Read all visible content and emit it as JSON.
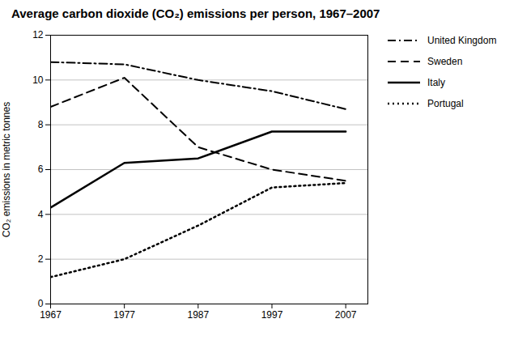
{
  "chart_data": {
    "type": "line",
    "title": "Average carbon dioxide (CO₂) emissions per person, 1967–2007",
    "ylabel": "CO₂ emissions in metric tonnes",
    "x": [
      1967,
      1977,
      1987,
      1997,
      2007
    ],
    "series": [
      {
        "name": "United Kingdom",
        "color": "#000000",
        "line_style": "dashdot",
        "values": [
          10.8,
          10.7,
          10.0,
          9.5,
          8.7
        ]
      },
      {
        "name": "Sweden",
        "color": "#000000",
        "line_style": "dashed",
        "values": [
          8.8,
          10.1,
          7.0,
          6.0,
          5.5
        ]
      },
      {
        "name": "Italy",
        "color": "#000000",
        "line_style": "solid",
        "values": [
          4.3,
          6.3,
          6.5,
          7.7,
          7.7
        ]
      },
      {
        "name": "Portugal",
        "color": "#000000",
        "line_style": "dotted",
        "values": [
          1.2,
          2.0,
          3.5,
          5.2,
          5.4
        ]
      }
    ],
    "xlim": [
      1967,
      2010
    ],
    "xticks": [
      1967,
      1977,
      1987,
      1997,
      2007
    ],
    "ylim": [
      0,
      12
    ],
    "yticks": [
      0,
      2,
      4,
      6,
      8,
      10,
      12
    ],
    "grid": true,
    "legend": "right"
  }
}
